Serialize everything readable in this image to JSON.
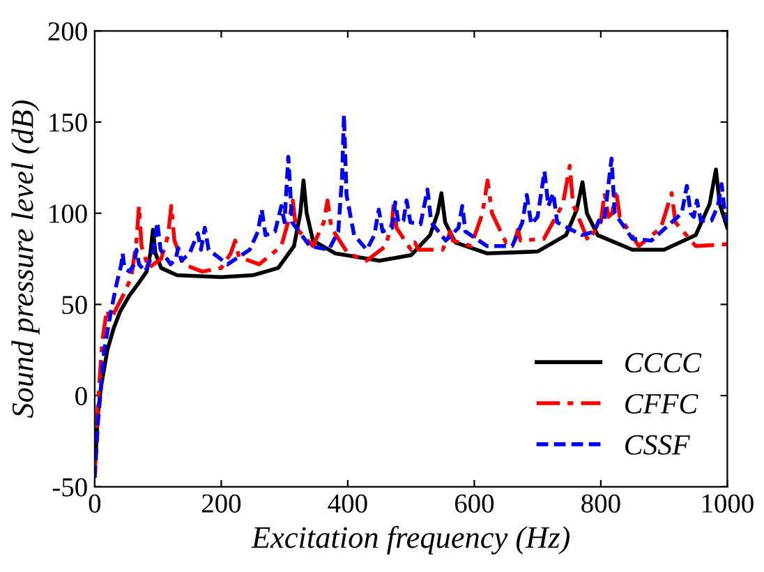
{
  "chart_data": {
    "type": "line",
    "xlabel": "Excitation frequency (Hz)",
    "ylabel": "Sound pressure level (dB)",
    "xlim": [
      0,
      1000
    ],
    "xticks": [
      0,
      200,
      400,
      600,
      800,
      1000
    ],
    "ylim": [
      -50,
      200
    ],
    "yticks": [
      -50,
      0,
      50,
      100,
      150,
      200
    ],
    "grid": false,
    "legend": "bottom right",
    "marker": "none",
    "series": [
      {
        "name": "CCCC",
        "color": "#000000",
        "line_style": "solid",
        "x": [
          0,
          5,
          10,
          20,
          30,
          40,
          55,
          70,
          82,
          88,
          92,
          96,
          105,
          130,
          200,
          250,
          290,
          315,
          325,
          330,
          335,
          345,
          380,
          450,
          500,
          530,
          542,
          548,
          554,
          570,
          620,
          700,
          745,
          762,
          771,
          778,
          795,
          850,
          900,
          950,
          972,
          982,
          988,
          1000
        ],
        "values": [
          -42,
          -10,
          5,
          25,
          37,
          46,
          55,
          62,
          68,
          78,
          91,
          78,
          70,
          66,
          65,
          66,
          70,
          82,
          100,
          118,
          100,
          85,
          78,
          74,
          77,
          88,
          100,
          111,
          95,
          84,
          78,
          79,
          88,
          102,
          117,
          100,
          88,
          80,
          80,
          88,
          105,
          124,
          105,
          92
        ]
      },
      {
        "name": "CFFC",
        "color": "#ff0000",
        "line_style": "dashdot",
        "x": [
          0,
          5,
          12,
          17,
          20,
          23,
          30,
          45,
          58,
          66,
          70,
          74,
          85,
          105,
          116,
          121,
          126,
          140,
          170,
          200,
          215,
          222,
          228,
          260,
          295,
          308,
          313,
          318,
          345,
          362,
          368,
          374,
          400,
          430,
          460,
          470,
          473,
          477,
          500,
          506,
          512,
          550,
          558,
          562,
          566,
          595,
          613,
          621,
          628,
          650,
          665,
          669,
          673,
          710,
          740,
          751,
          756,
          780,
          800,
          806,
          812,
          818,
          824,
          830,
          860,
          895,
          912,
          918,
          950,
          1000
        ],
        "values": [
          -42,
          -5,
          30,
          42,
          47,
          42,
          45,
          55,
          65,
          85,
          104,
          82,
          70,
          75,
          88,
          104,
          85,
          72,
          68,
          70,
          78,
          85,
          76,
          72,
          82,
          98,
          107,
          92,
          82,
          95,
          107,
          92,
          78,
          74,
          82,
          95,
          107,
          92,
          80,
          84,
          80,
          80,
          86,
          90,
          85,
          82,
          100,
          118,
          100,
          84,
          86,
          91,
          85,
          86,
          105,
          126,
          105,
          85,
          95,
          111,
          98,
          100,
          113,
          98,
          82,
          92,
          111,
          95,
          82,
          83
        ]
      },
      {
        "name": "CSSF",
        "color": "#0000ff",
        "line_style": "dashed",
        "x": [
          0,
          5,
          15,
          25,
          35,
          42,
          44,
          47,
          55,
          62,
          66,
          70,
          80,
          92,
          99,
          104,
          120,
          128,
          132,
          137,
          150,
          163,
          168,
          174,
          180,
          210,
          245,
          258,
          264,
          270,
          285,
          295,
          300,
          306,
          312,
          340,
          370,
          385,
          391,
          394,
          398,
          410,
          430,
          442,
          449,
          455,
          470,
          475,
          480,
          488,
          493,
          499,
          515,
          526,
          532,
          555,
          575,
          581,
          586,
          620,
          660,
          676,
          683,
          690,
          700,
          711,
          717,
          725,
          731,
          770,
          790,
          797,
          805,
          817,
          822,
          850,
          880,
          928,
          936,
          942,
          947,
          952,
          958,
          975,
          985,
          991,
          996,
          1000
        ],
        "values": [
          -45,
          -15,
          25,
          45,
          62,
          72,
          78,
          70,
          68,
          72,
          80,
          72,
          68,
          78,
          95,
          80,
          72,
          75,
          81,
          74,
          78,
          89,
          80,
          92,
          80,
          72,
          80,
          90,
          102,
          88,
          90,
          104,
          95,
          131,
          95,
          82,
          80,
          90,
          120,
          154,
          110,
          88,
          80,
          88,
          102,
          90,
          92,
          106,
          95,
          96,
          107,
          95,
          94,
          113,
          95,
          85,
          92,
          104,
          90,
          82,
          82,
          95,
          110,
          94,
          98,
          123,
          104,
          111,
          95,
          88,
          90,
          96,
          95,
          130,
          100,
          86,
          85,
          100,
          115,
          100,
          98,
          107,
          96,
          96,
          104,
          116,
          100,
          95
        ]
      }
    ]
  }
}
